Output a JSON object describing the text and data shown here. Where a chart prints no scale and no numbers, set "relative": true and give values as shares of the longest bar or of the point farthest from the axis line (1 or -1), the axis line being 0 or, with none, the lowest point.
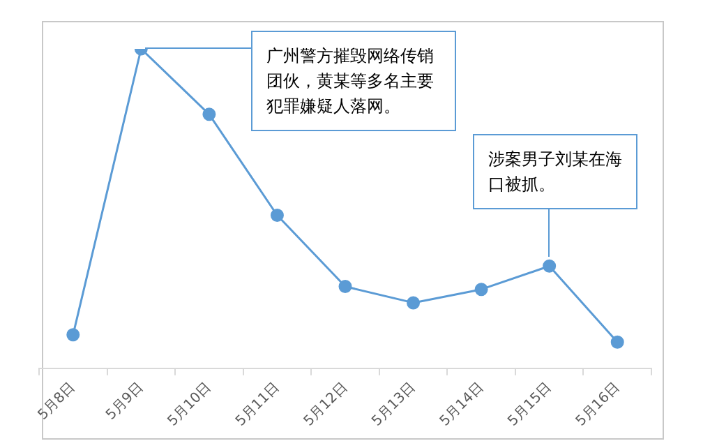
{
  "chart_data": {
    "type": "line",
    "categories": [
      "5月8日",
      "5月9日",
      "5月10日",
      "5月11日",
      "5月12日",
      "5月13日",
      "5月14日",
      "5月15日",
      "5月16日"
    ],
    "relative": true,
    "series": [
      {
        "color": "#5b9bd5",
        "values": [
          0.105,
          1,
          0.795,
          0.479,
          0.256,
          0.205,
          0.247,
          0.32,
          0.082
        ]
      }
    ],
    "marker": "circle",
    "line_style": "solid",
    "grid": false,
    "legend": false,
    "annotations": [
      "广州警方摧毁网络传销团伙，黄某等多名主要犯罪嫌疑人落网。",
      "涉案男子刘某在海口被抓。"
    ]
  }
}
